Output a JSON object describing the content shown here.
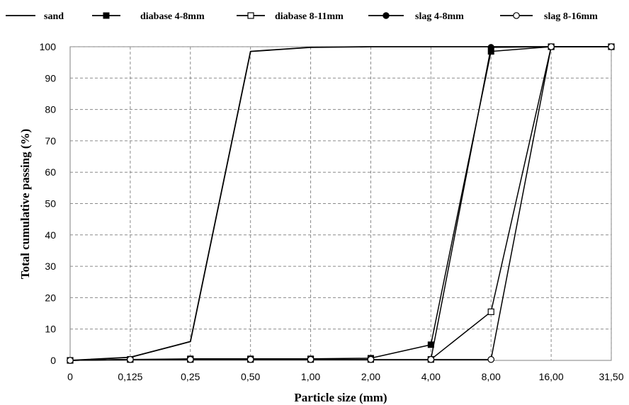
{
  "chart_data": {
    "type": "line",
    "title": "",
    "xlabel": "Particle size (mm)",
    "ylabel": "Total cumulative passing (%)",
    "categories": [
      "0",
      "0,125",
      "0,25",
      "0,50",
      "1,00",
      "2,00",
      "4,00",
      "8,00",
      "16,00",
      "31,50"
    ],
    "ylim": [
      0,
      100
    ],
    "yticks": [
      "0",
      "10",
      "20",
      "30",
      "40",
      "50",
      "60",
      "70",
      "80",
      "90",
      "100"
    ],
    "grid": true,
    "legend_position": "top",
    "series": [
      {
        "name": "sand",
        "marker": "none",
        "values": [
          0,
          1,
          6,
          98.5,
          99.8,
          100,
          100,
          100,
          100,
          100
        ]
      },
      {
        "name": "diabase 4-8mm",
        "marker": "filled-square",
        "values": [
          0,
          0.3,
          0.5,
          0.5,
          0.5,
          0.7,
          5,
          98.5,
          100,
          100
        ]
      },
      {
        "name": "diabase 8-11mm",
        "marker": "open-square",
        "values": [
          0,
          0.3,
          0.3,
          0.3,
          0.3,
          0.3,
          0.3,
          15.5,
          100,
          100
        ]
      },
      {
        "name": "slag 4-8mm",
        "marker": "filled-circle",
        "values": [
          0,
          0.3,
          0.3,
          0.3,
          0.3,
          0.3,
          0.3,
          99.8,
          100,
          100
        ]
      },
      {
        "name": "slag 8-16mm",
        "marker": "open-circle",
        "values": [
          0,
          0.3,
          0.3,
          0.3,
          0.3,
          0.3,
          0.3,
          0.3,
          100,
          100
        ]
      }
    ]
  }
}
